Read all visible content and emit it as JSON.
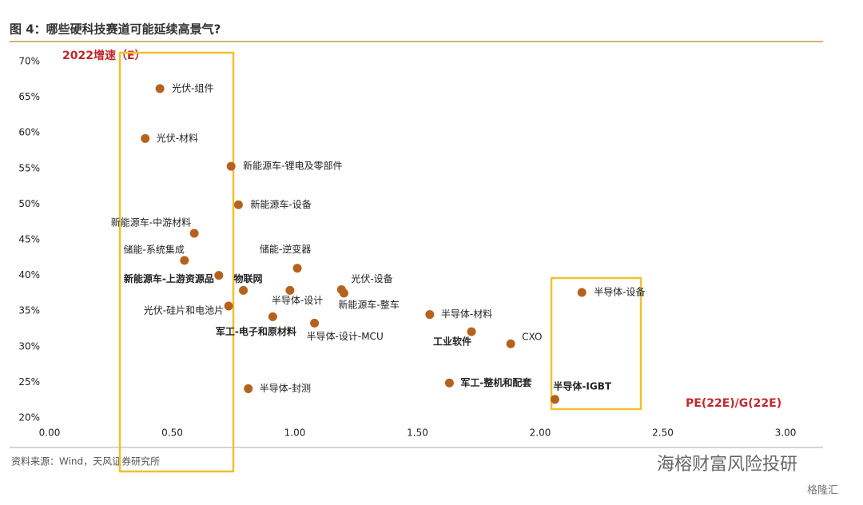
{
  "chart_data": {
    "type": "scatter",
    "title": "图 4：哪些硬科技赛道可能延续高景气?",
    "y_label": "2022增速（E）",
    "x_label": "PE(22E)/G(22E)",
    "source": "资料来源：Wind，天风证券研究所",
    "watermark": "海榕财富风险投研",
    "watermark2": "格隆汇",
    "color": "#b5621f",
    "xlim": [
      0,
      3
    ],
    "ylim": [
      20,
      70
    ],
    "xticks": [
      {
        "value": 0,
        "label": "0.00"
      },
      {
        "value": 0.5,
        "label": "0.50"
      },
      {
        "value": 1,
        "label": "1.00"
      },
      {
        "value": 1.5,
        "label": "1.50"
      },
      {
        "value": 2,
        "label": "2.00"
      },
      {
        "value": 2.5,
        "label": "2.50"
      },
      {
        "value": 3,
        "label": "3.00"
      }
    ],
    "yticks": [
      {
        "value": 20,
        "label": "20%"
      },
      {
        "value": 25,
        "label": "25%"
      },
      {
        "value": 30,
        "label": "30%"
      },
      {
        "value": 35,
        "label": "35%"
      },
      {
        "value": 40,
        "label": "40%"
      },
      {
        "value": 45,
        "label": "45%"
      },
      {
        "value": 50,
        "label": "50%"
      },
      {
        "value": 55,
        "label": "55%"
      },
      {
        "value": 60,
        "label": "60%"
      },
      {
        "value": 65,
        "label": "65%"
      },
      {
        "value": 70,
        "label": "70%"
      }
    ],
    "points": [
      {
        "label": "光伏-组件",
        "x": 0.45,
        "y": 66.2,
        "label_color": "#222222"
      },
      {
        "label": "光伏-材料",
        "x": 0.39,
        "y": 59.2,
        "label_color": "#222222"
      },
      {
        "label": "新能源车-锂电及零部件",
        "x": 0.74,
        "y": 55.3,
        "label_color": "#222222"
      },
      {
        "label": "新能源车-设备",
        "x": 0.77,
        "y": 49.9,
        "label_color": "#222222"
      },
      {
        "label": "新能源车-中游材料",
        "x": 0.59,
        "y": 45.9,
        "label_color": "#222222"
      },
      {
        "label": "储能-系统集成",
        "x": 0.55,
        "y": 42.1,
        "label_color": "#222222"
      },
      {
        "label": "储能-逆变器",
        "x": 1.01,
        "y": 41.0,
        "label_color": "#222222"
      },
      {
        "label": "新能源车-上游资源品",
        "x": 0.69,
        "y": 40.0,
        "label_color": "#c0282d"
      },
      {
        "label": "物联网",
        "x": 0.79,
        "y": 37.9,
        "label_color": "#c0282d"
      },
      {
        "label": "半导体-设计",
        "x": 0.98,
        "y": 37.9,
        "label_color": "#222222"
      },
      {
        "label": "光伏-设备",
        "x": 1.19,
        "y": 38.0,
        "label_color": "#222222"
      },
      {
        "label": "新能源车-整车",
        "x": 1.2,
        "y": 37.5,
        "label_color": "#222222"
      },
      {
        "label": "光伏-硅片和电池片",
        "x": 0.73,
        "y": 35.7,
        "label_color": "#222222"
      },
      {
        "label": "军工-电子和原材料",
        "x": 0.91,
        "y": 34.2,
        "label_color": "#c0282d"
      },
      {
        "label": "半导体-设计-MCU",
        "x": 1.08,
        "y": 33.3,
        "label_color": "#222222"
      },
      {
        "label": "半导体-材料",
        "x": 1.55,
        "y": 34.5,
        "label_color": "#222222"
      },
      {
        "label": "工业软件",
        "x": 1.72,
        "y": 32.1,
        "label_color": "#c0282d"
      },
      {
        "label": "CXO",
        "x": 1.88,
        "y": 30.4,
        "label_color": "#222222"
      },
      {
        "label": "半导体-设备",
        "x": 2.17,
        "y": 37.6,
        "label_color": "#222222"
      },
      {
        "label": "半导体-封测",
        "x": 0.81,
        "y": 24.1,
        "label_color": "#222222"
      },
      {
        "label": "军工-整机和配套",
        "x": 1.63,
        "y": 24.9,
        "label_color": "#c0282d"
      },
      {
        "label": "半导体-IGBT",
        "x": 2.06,
        "y": 22.6,
        "label_color": "#c0282d"
      }
    ]
  }
}
